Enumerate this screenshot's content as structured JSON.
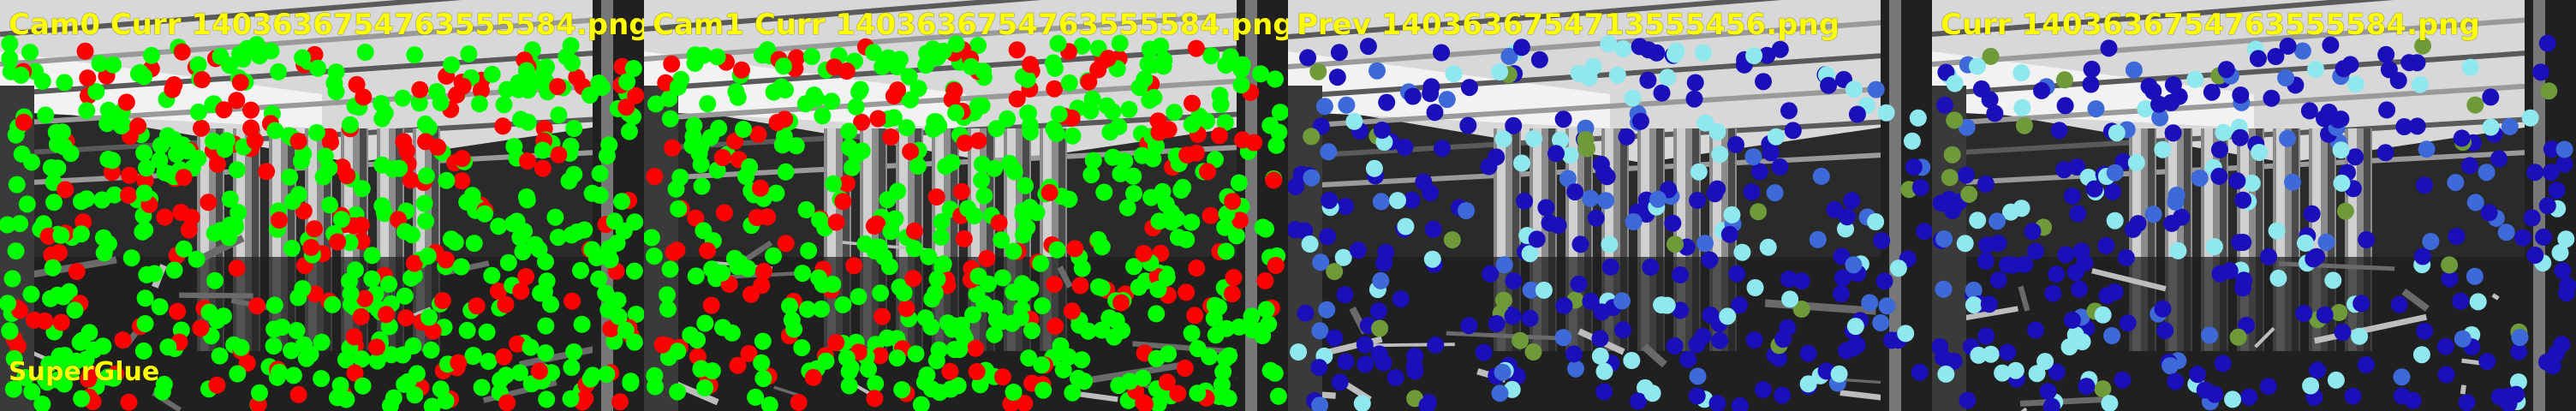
{
  "header": {
    "panels": [
      {
        "title": "Cam0 Curr 1403636754763555584.png"
      },
      {
        "title": "Cam1 Curr 1403636754763555584.png"
      },
      {
        "title": "Prev 1403636754713555456.png"
      },
      {
        "title": "Curr 1403636754763555584.png"
      }
    ]
  },
  "footer": {
    "method_label": "SuperGlue"
  },
  "colors": {
    "label_yellow": "#ffff00",
    "inlier_green": "#00ff00",
    "outlier_red": "#ff0000",
    "track_dark_blue": "#1a0fb8",
    "track_light_cyan": "#8fe8ee",
    "track_blue": "#3d6ad8",
    "track_olive": "#6f9a3a"
  }
}
